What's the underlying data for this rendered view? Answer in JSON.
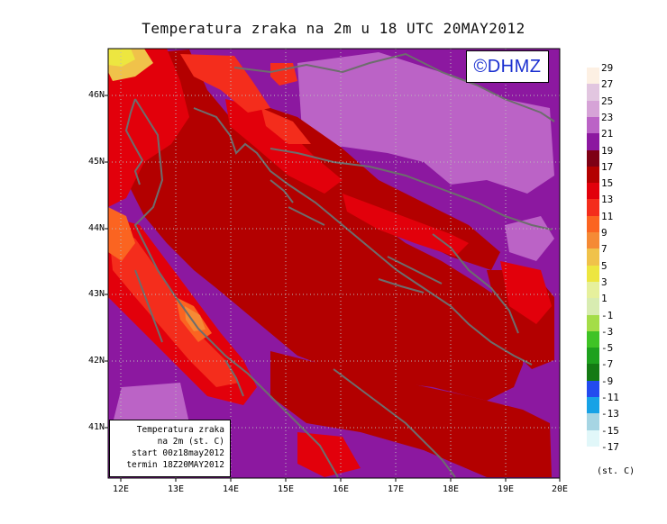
{
  "title": "Temperatura zraka na 2m u 18 UTC 20MAY2012",
  "copyright": "©DHMZ",
  "info_box": {
    "line1": "Temperatura zraka",
    "line2": "na 2m (st. C)",
    "line3": "start 00z18may2012",
    "line4": "termin 18Z20MAY2012"
  },
  "lat_labels": [
    "46N",
    "45N",
    "44N",
    "43N",
    "42N",
    "41N"
  ],
  "lon_labels": [
    "12E",
    "13E",
    "14E",
    "15E",
    "16E",
    "17E",
    "18E",
    "19E",
    "20E"
  ],
  "legend": {
    "unit": "(st. C)",
    "levels": [
      "29",
      "27",
      "25",
      "23",
      "21",
      "19",
      "17",
      "15",
      "13",
      "11",
      "9",
      "7",
      "5",
      "3",
      "1",
      "-1",
      "-3",
      "-5",
      "-7",
      "-9",
      "-11",
      "-13",
      "-15",
      "-17"
    ],
    "colors": [
      "#fdf0e3",
      "#e2c6e0",
      "#d6a3d7",
      "#bb63c6",
      "#8c18a0",
      "#7e0015",
      "#b30000",
      "#e2000b",
      "#f42d1c",
      "#fb6421",
      "#f58a35",
      "#f0c24a",
      "#ede640",
      "#e6f09c",
      "#d8ecb1",
      "#a4dd48",
      "#3fc326",
      "#1ea11e",
      "#147a14",
      "#234bef",
      "#17a2e6",
      "#a6d5e3",
      "#e1f7f9",
      "#ffffff"
    ]
  },
  "colors": {
    "coast": "#6d6d6d",
    "grid": "#bbbbbb",
    "temp_14": "#f42d1c",
    "temp_16": "#e2000b",
    "temp_18": "#b30000",
    "temp_20": "#8c18a0",
    "temp_22": "#bb63c6"
  }
}
